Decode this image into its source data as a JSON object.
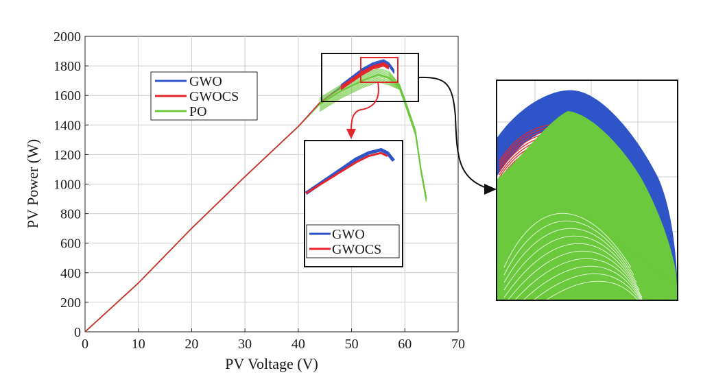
{
  "chart_data": {
    "type": "line",
    "xlabel": "PV Voltage (V)",
    "ylabel": "PV Power (W)",
    "xlim": [
      0,
      70
    ],
    "ylim": [
      0,
      2000
    ],
    "xticks": [
      "0",
      "10",
      "20",
      "30",
      "40",
      "50",
      "60",
      "70"
    ],
    "yticks": [
      "0",
      "200",
      "400",
      "600",
      "800",
      "1000",
      "1200",
      "1400",
      "1600",
      "1800",
      "2000"
    ],
    "grid": true,
    "legend_position": "upper-left",
    "series": [
      {
        "name": "GWO",
        "color": "#2e54c8",
        "x": [
          0,
          10,
          20,
          30,
          40,
          44,
          48,
          52,
          54,
          56,
          57,
          58
        ],
        "y": [
          0,
          330,
          700,
          1050,
          1390,
          1550,
          1660,
          1770,
          1810,
          1830,
          1810,
          1760
        ]
      },
      {
        "name": "GWOCS",
        "color": "#e5242b",
        "x": [
          0,
          10,
          20,
          30,
          40,
          44,
          48,
          52,
          54,
          56,
          57
        ],
        "y": [
          0,
          330,
          700,
          1050,
          1390,
          1550,
          1650,
          1750,
          1790,
          1810,
          1790
        ]
      },
      {
        "name": "PO",
        "color": "#6cc83c",
        "x": [
          0,
          10,
          20,
          30,
          40,
          44,
          48,
          52,
          55,
          57,
          59,
          60,
          62,
          63,
          64
        ],
        "y": [
          0,
          330,
          700,
          1050,
          1390,
          1540,
          1630,
          1700,
          1740,
          1720,
          1660,
          1560,
          1350,
          1100,
          900
        ]
      }
    ],
    "inset_legend": [
      "GWO",
      "GWOCS"
    ]
  }
}
